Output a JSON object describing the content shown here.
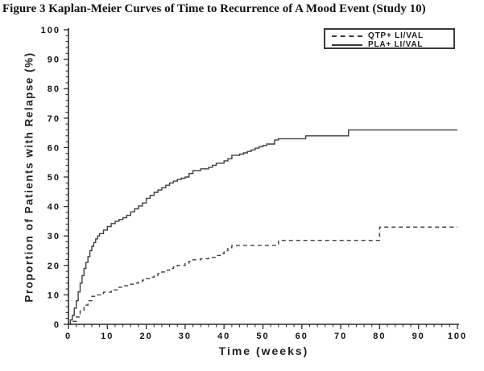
{
  "title": "Figure 3 Kaplan-Meier Curves of Time to Recurrence of A Mood Event (Study 10)",
  "chart_data": {
    "type": "line",
    "subtype": "kaplan-meier-step",
    "title": "Figure 3 Kaplan-Meier Curves of Time to Recurrence of A Mood Event (Study 10)",
    "xlabel": "Time (weeks)",
    "ylabel": "Proportion of Patients with Relapse (%)",
    "xlim": [
      0,
      100
    ],
    "ylim": [
      0,
      100
    ],
    "x_major_ticks": [
      0,
      10,
      20,
      30,
      40,
      50,
      60,
      70,
      80,
      90,
      100
    ],
    "y_major_ticks": [
      0,
      10,
      20,
      30,
      40,
      50,
      60,
      70,
      80,
      90,
      100
    ],
    "minor_tick_interval": 2,
    "grid": false,
    "legend_position": "top-right",
    "line_color": "#3d3d3d",
    "series": [
      {
        "name": "QTP+ LI/VAL",
        "style": "dashed",
        "final_value_pct": 33,
        "points": [
          [
            0,
            0
          ],
          [
            1,
            1
          ],
          [
            2,
            2.5
          ],
          [
            3,
            4.5
          ],
          [
            4,
            6.5
          ],
          [
            5,
            8
          ],
          [
            6,
            9.5
          ],
          [
            7,
            10
          ],
          [
            9,
            10.9
          ],
          [
            11,
            11.7
          ],
          [
            13,
            12.6
          ],
          [
            14,
            13.1
          ],
          [
            16,
            13.6
          ],
          [
            17,
            14
          ],
          [
            18,
            14.5
          ],
          [
            19,
            15
          ],
          [
            20,
            15.5
          ],
          [
            21,
            16
          ],
          [
            22,
            16.6
          ],
          [
            23,
            17.2
          ],
          [
            24,
            17.8
          ],
          [
            25,
            18.4
          ],
          [
            26,
            19
          ],
          [
            27,
            19.5
          ],
          [
            28,
            20
          ],
          [
            30,
            20.8
          ],
          [
            31,
            21.4
          ],
          [
            32,
            21.9
          ],
          [
            34,
            22.3
          ],
          [
            36,
            22.7
          ],
          [
            38,
            23.4
          ],
          [
            39,
            24
          ],
          [
            40,
            25
          ],
          [
            41,
            26
          ],
          [
            42,
            26.8
          ],
          [
            54,
            28.5
          ],
          [
            80,
            33
          ],
          [
            100,
            33
          ]
        ]
      },
      {
        "name": "PLA+ LI/VAL",
        "style": "solid",
        "final_value_pct": 66,
        "points": [
          [
            0,
            0
          ],
          [
            0.5,
            1.5
          ],
          [
            1,
            3
          ],
          [
            1.5,
            5.5
          ],
          [
            2,
            8
          ],
          [
            2.5,
            11
          ],
          [
            3,
            14
          ],
          [
            3.5,
            16.5
          ],
          [
            4,
            19
          ],
          [
            4.5,
            21
          ],
          [
            5,
            23
          ],
          [
            5.5,
            25
          ],
          [
            6,
            26.5
          ],
          [
            6.5,
            27.8
          ],
          [
            7,
            29
          ],
          [
            7.5,
            30
          ],
          [
            8,
            30.8
          ],
          [
            9,
            32
          ],
          [
            10,
            33.2
          ],
          [
            11,
            34.2
          ],
          [
            12,
            35
          ],
          [
            13,
            35.6
          ],
          [
            14,
            36.2
          ],
          [
            15,
            37
          ],
          [
            16,
            38.2
          ],
          [
            17,
            39.2
          ],
          [
            18,
            40.2
          ],
          [
            19,
            41.2
          ],
          [
            20,
            42.8
          ],
          [
            21,
            43.8
          ],
          [
            22,
            44.8
          ],
          [
            23,
            45.6
          ],
          [
            24,
            46.4
          ],
          [
            25,
            47.2
          ],
          [
            26,
            48
          ],
          [
            27,
            48.6
          ],
          [
            28,
            49.2
          ],
          [
            29,
            49.6
          ],
          [
            30,
            50
          ],
          [
            31,
            51.2
          ],
          [
            32,
            52.2
          ],
          [
            34,
            52.8
          ],
          [
            36,
            53.3
          ],
          [
            37,
            54
          ],
          [
            38,
            54.7
          ],
          [
            40,
            55.5
          ],
          [
            41,
            56.2
          ],
          [
            42,
            57.4
          ],
          [
            44,
            57.8
          ],
          [
            45,
            58.2
          ],
          [
            46,
            58.7
          ],
          [
            47,
            59.2
          ],
          [
            48,
            59.8
          ],
          [
            49,
            60.3
          ],
          [
            50,
            60.7
          ],
          [
            51,
            61.2
          ],
          [
            53,
            62.6
          ],
          [
            54,
            63
          ],
          [
            61,
            64
          ],
          [
            72,
            66
          ],
          [
            100,
            66
          ]
        ]
      }
    ]
  }
}
